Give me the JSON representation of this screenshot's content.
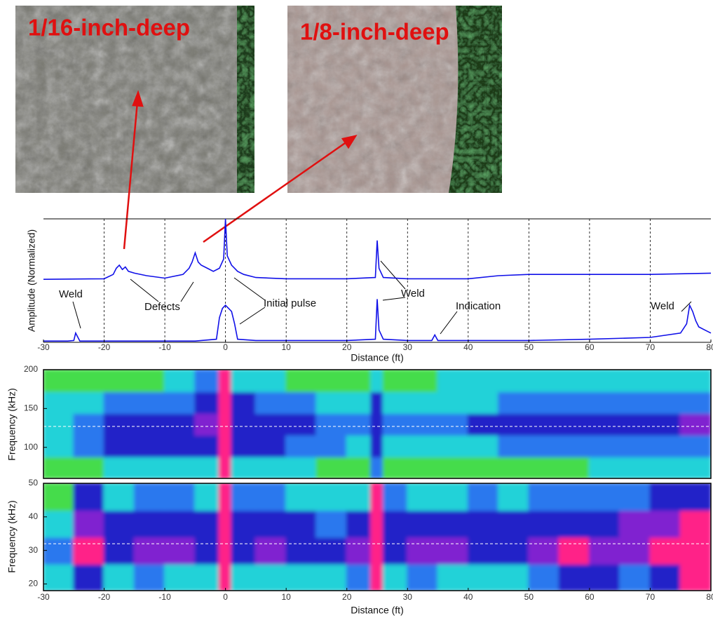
{
  "photos": [
    {
      "label": "1/16-inch-deep"
    },
    {
      "label": "1/8-inch-deep"
    }
  ],
  "chart_data": [
    {
      "type": "line",
      "ylabel": "Amplitude (Normalized)",
      "x": [
        -30,
        -20,
        -18.5,
        -18,
        -17.5,
        -17,
        -16.5,
        -16,
        -15,
        -13,
        -10,
        -7,
        -6,
        -5.5,
        -5,
        -4.5,
        -4,
        -3,
        -2,
        -1,
        -0.3,
        0,
        0.3,
        1,
        2,
        3,
        5,
        10,
        20,
        24.7,
        25,
        25.3,
        26,
        30,
        40,
        45,
        50,
        60,
        70,
        80
      ],
      "series": [
        {
          "color": "#1010e8",
          "values": [
            0.02,
            0.03,
            0.1,
            0.2,
            0.25,
            0.18,
            0.22,
            0.15,
            0.12,
            0.08,
            0.04,
            0.1,
            0.2,
            0.3,
            0.45,
            0.3,
            0.25,
            0.2,
            0.15,
            0.2,
            0.35,
            1,
            0.4,
            0.25,
            0.15,
            0.1,
            0.05,
            0.03,
            0.03,
            0.05,
            0.65,
            0.2,
            0.05,
            0.03,
            0.03,
            0.08,
            0.1,
            0.1,
            0.1,
            0.12
          ]
        }
      ],
      "xlim": [
        -30,
        80
      ],
      "ylim": [
        0,
        1
      ]
    },
    {
      "type": "line",
      "xlabel": "Distance (ft)",
      "x": [
        -30,
        -26,
        -25,
        -24.7,
        -24,
        -20,
        -5,
        -1.5,
        -1,
        -0.5,
        0,
        0.5,
        1,
        1.5,
        2,
        5,
        20,
        24.7,
        25,
        25.3,
        26,
        30,
        34,
        34.5,
        35,
        40,
        50,
        60,
        70,
        75,
        76,
        76.5,
        77,
        77.5,
        78,
        79,
        80
      ],
      "series": [
        {
          "color": "#1010e8",
          "values": [
            0.02,
            0.02,
            0.03,
            0.15,
            0.02,
            0.02,
            0.02,
            0.05,
            0.4,
            0.55,
            0.6,
            0.55,
            0.5,
            0.3,
            0.05,
            0.03,
            0.03,
            0.05,
            0.7,
            0.2,
            0.05,
            0.03,
            0.03,
            0.12,
            0.03,
            0.03,
            0.03,
            0.05,
            0.08,
            0.15,
            0.3,
            0.6,
            0.5,
            0.35,
            0.25,
            0.2,
            0.15
          ]
        }
      ],
      "xlim": [
        -30,
        80
      ],
      "ylim": [
        0,
        1
      ],
      "xticks": [
        -30,
        -20,
        -10,
        0,
        10,
        20,
        30,
        40,
        50,
        60,
        70,
        80
      ],
      "grid": true,
      "annotations": [
        "Weld",
        "Defects",
        "Initial pulse",
        "Weld",
        "Indication",
        "Weld"
      ]
    },
    {
      "type": "heatmap",
      "ylabel": "Frequency (kHz)",
      "x_bins": [
        -30,
        -25,
        -20,
        -15,
        -10,
        -5,
        -1,
        1,
        5,
        10,
        15,
        20,
        24,
        26,
        30,
        35,
        40,
        45,
        50,
        55,
        60,
        65,
        70,
        75,
        80
      ],
      "y_bins": [
        60,
        88,
        116,
        144,
        172,
        200
      ],
      "values": [
        [
          0.1,
          0.15,
          0.25,
          0.2,
          0.25,
          0.3,
          1,
          0.3,
          0.25,
          0.2,
          0.15,
          0.15,
          0.4,
          0.15,
          0.15,
          0.15,
          0.15,
          0.15,
          0.15,
          0.15,
          0.2,
          0.2,
          0.2,
          0.2
        ],
        [
          0.2,
          0.35,
          0.6,
          0.5,
          0.55,
          0.65,
          1,
          0.55,
          0.5,
          0.45,
          0.35,
          0.3,
          0.55,
          0.3,
          0.3,
          0.3,
          0.3,
          0.35,
          0.35,
          0.35,
          0.4,
          0.4,
          0.4,
          0.4
        ],
        [
          0.25,
          0.4,
          0.65,
          0.55,
          0.6,
          0.7,
          1,
          0.6,
          0.55,
          0.5,
          0.4,
          0.35,
          0.6,
          0.4,
          0.4,
          0.4,
          0.5,
          0.6,
          0.6,
          0.6,
          0.65,
          0.65,
          0.65,
          0.7
        ],
        [
          0.2,
          0.3,
          0.45,
          0.4,
          0.45,
          0.5,
          1,
          0.5,
          0.45,
          0.4,
          0.3,
          0.3,
          0.5,
          0.3,
          0.3,
          0.3,
          0.3,
          0.35,
          0.35,
          0.35,
          0.35,
          0.35,
          0.4,
          0.4
        ],
        [
          0.1,
          0.1,
          0.15,
          0.15,
          0.2,
          0.35,
          1,
          0.3,
          0.2,
          0.15,
          0.1,
          0.1,
          0.2,
          0.15,
          0.15,
          0.2,
          0.2,
          0.2,
          0.25,
          0.25,
          0.25,
          0.3,
          0.3,
          0.3
        ]
      ],
      "xlim": [
        -30,
        80
      ],
      "ylim": [
        60,
        200
      ],
      "yticks": [
        100,
        150,
        200
      ],
      "zlim": [
        0,
        1
      ],
      "colormap": [
        "#44dc4c",
        "#22d2d8",
        "#2c78ee",
        "#2424c8",
        "#8020d0",
        "#ff2288"
      ],
      "hline": 127
    },
    {
      "type": "heatmap",
      "ylabel": "Frequency (kHz)",
      "xlabel": "Distance (ft)",
      "x_bins": [
        -30,
        -25,
        -20,
        -15,
        -10,
        -5,
        -1,
        1,
        5,
        10,
        15,
        20,
        24,
        26,
        30,
        35,
        40,
        45,
        50,
        55,
        60,
        65,
        70,
        75,
        80
      ],
      "y_bins": [
        18,
        26,
        34,
        42,
        50
      ],
      "values": [
        [
          0.2,
          0.5,
          0.3,
          0.35,
          0.3,
          0.25,
          1,
          0.3,
          0.3,
          0.25,
          0.3,
          0.35,
          1,
          0.3,
          0.35,
          0.3,
          0.3,
          0.25,
          0.4,
          0.5,
          0.5,
          0.45,
          0.55,
          0.9
        ],
        [
          0.4,
          0.85,
          0.65,
          0.7,
          0.7,
          0.55,
          1,
          0.65,
          0.7,
          0.6,
          0.65,
          0.7,
          1,
          0.65,
          0.8,
          0.7,
          0.65,
          0.6,
          0.8,
          0.85,
          0.8,
          0.75,
          0.85,
          1
        ],
        [
          0.3,
          0.8,
          0.55,
          0.6,
          0.65,
          0.5,
          1,
          0.6,
          0.65,
          0.5,
          0.45,
          0.6,
          1,
          0.55,
          0.6,
          0.65,
          0.6,
          0.5,
          0.6,
          0.65,
          0.65,
          0.7,
          0.8,
          0.9
        ],
        [
          0.15,
          0.5,
          0.2,
          0.35,
          0.4,
          0.3,
          1,
          0.4,
          0.45,
          0.25,
          0.2,
          0.3,
          1,
          0.35,
          0.3,
          0.3,
          0.4,
          0.3,
          0.35,
          0.4,
          0.4,
          0.35,
          0.5,
          0.6
        ]
      ],
      "xlim": [
        -30,
        80
      ],
      "ylim": [
        18,
        50
      ],
      "xticks": [
        -30,
        -20,
        -10,
        0,
        10,
        20,
        30,
        40,
        50,
        60,
        70,
        80
      ],
      "yticks": [
        20,
        30,
        40,
        50
      ],
      "zlim": [
        0,
        1
      ],
      "colormap": [
        "#44dc4c",
        "#22d2d8",
        "#2c78ee",
        "#2424c8",
        "#8020d0",
        "#ff2288"
      ],
      "hline": 32
    }
  ]
}
